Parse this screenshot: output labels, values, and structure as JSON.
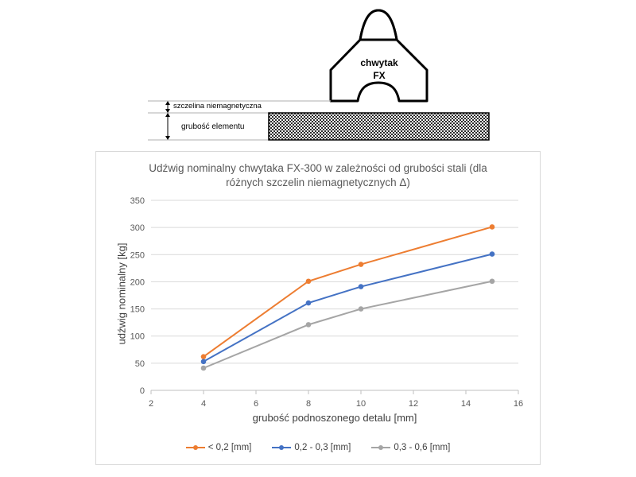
{
  "diagram": {
    "gripper_label_line1": "chwytak",
    "gripper_label_line2": "FX",
    "gap_label": "szczelina niemagnetyczna",
    "thickness_label": "grubość elementu"
  },
  "chart_data": {
    "type": "line",
    "title_line1": "Udźwig nominalny chwytaka FX-300 w zależności od grubości stali (dla",
    "title_line2": "różnych szczelin niemagnetycznych Δ)",
    "xlabel": "grubość podnoszonego detalu [mm]",
    "ylabel": "udźwig nominalny [kg]",
    "xlim": [
      2,
      16
    ],
    "ylim": [
      0,
      350
    ],
    "x_ticks": [
      2,
      4,
      6,
      8,
      10,
      12,
      14,
      16
    ],
    "y_ticks": [
      0,
      50,
      100,
      150,
      200,
      250,
      300,
      350
    ],
    "grid": "horizontal",
    "legend_position": "bottom",
    "x": [
      4,
      8,
      10,
      15
    ],
    "series": [
      {
        "name": "< 0,2 [mm]",
        "color": "#ED7D31",
        "values": [
          62,
          201,
          232,
          301
        ]
      },
      {
        "name": "0,2 - 0,3 [mm]",
        "color": "#4472C4",
        "values": [
          53,
          161,
          191,
          251
        ]
      },
      {
        "name": "0,3 - 0,6 [mm]",
        "color": "#A5A5A5",
        "values": [
          41,
          121,
          150,
          201
        ]
      }
    ]
  }
}
